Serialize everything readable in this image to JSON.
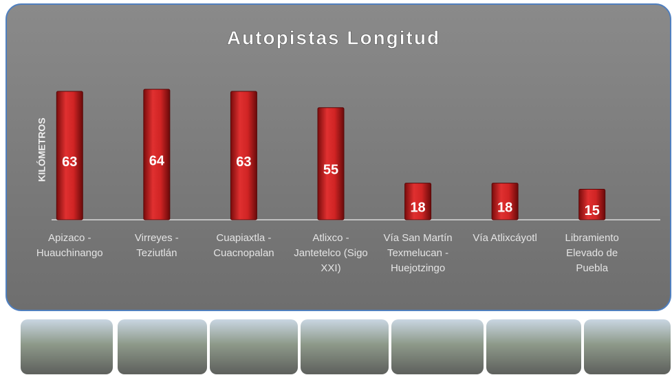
{
  "chart_data": {
    "type": "bar",
    "title": "Autopistas Longitud",
    "y_label": "KILÓMETROS",
    "categories": [
      "Apizaco - Huauchinango",
      "Virreyes - Teziutlán",
      "Cuapiaxtla - Cuacnopalan",
      "Atlixco - Jantetelco (Sigo XXI)",
      "Vía San Martín Texmelucan - Huejotzingo",
      "Vía Atlixcáyotl",
      "Libramiento Elevado de Puebla"
    ],
    "values": [
      63,
      64,
      63,
      55,
      18,
      18,
      15
    ],
    "color": "#c81e1e"
  }
}
